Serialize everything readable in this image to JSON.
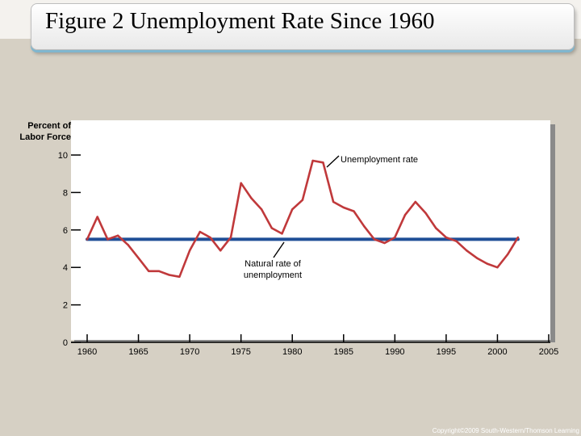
{
  "slide": {
    "title": "Figure 2 Unemployment Rate Since 1960",
    "copyright": "Copyright©2009 South-Western/Thomson Learning"
  },
  "chart_data": {
    "type": "line",
    "ylabel_line1": "Percent of",
    "ylabel_line2": "Labor Force",
    "xlabel": "",
    "xlim": [
      1958.5,
      2005
    ],
    "ylim": [
      0,
      10
    ],
    "x_ticks": [
      1960,
      1965,
      1970,
      1975,
      1980,
      1985,
      1990,
      1995,
      2000,
      2005
    ],
    "y_ticks": [
      0,
      2,
      4,
      6,
      8,
      10
    ],
    "grid": false,
    "series": [
      {
        "name": "Unemployment rate",
        "color": "#c0393b",
        "x": [
          1960,
          1961,
          1962,
          1963,
          1964,
          1965,
          1966,
          1967,
          1968,
          1969,
          1970,
          1971,
          1972,
          1973,
          1974,
          1975,
          1976,
          1977,
          1978,
          1979,
          1980,
          1981,
          1982,
          1983,
          1984,
          1985,
          1986,
          1987,
          1988,
          1989,
          1990,
          1991,
          1992,
          1993,
          1994,
          1995,
          1996,
          1997,
          1998,
          1999,
          2000,
          2001,
          2002
        ],
        "values": [
          5.5,
          6.7,
          5.5,
          5.7,
          5.2,
          4.5,
          3.8,
          3.8,
          3.6,
          3.5,
          4.9,
          5.9,
          5.6,
          4.9,
          5.6,
          8.5,
          7.7,
          7.1,
          6.1,
          5.8,
          7.1,
          7.6,
          9.7,
          9.6,
          7.5,
          7.2,
          7.0,
          6.2,
          5.5,
          5.3,
          5.6,
          6.8,
          7.5,
          6.9,
          6.1,
          5.6,
          5.4,
          4.9,
          4.5,
          4.2,
          4.0,
          4.7,
          5.6
        ]
      },
      {
        "name": "Natural rate of unemployment",
        "color": "#1f4e96",
        "x": [
          1960,
          2002
        ],
        "values": [
          5.5,
          5.5
        ]
      }
    ],
    "annotations": [
      {
        "line1": "Unemployment rate",
        "line2": ""
      },
      {
        "line1": "Natural rate of",
        "line2": "unemployment"
      }
    ]
  }
}
